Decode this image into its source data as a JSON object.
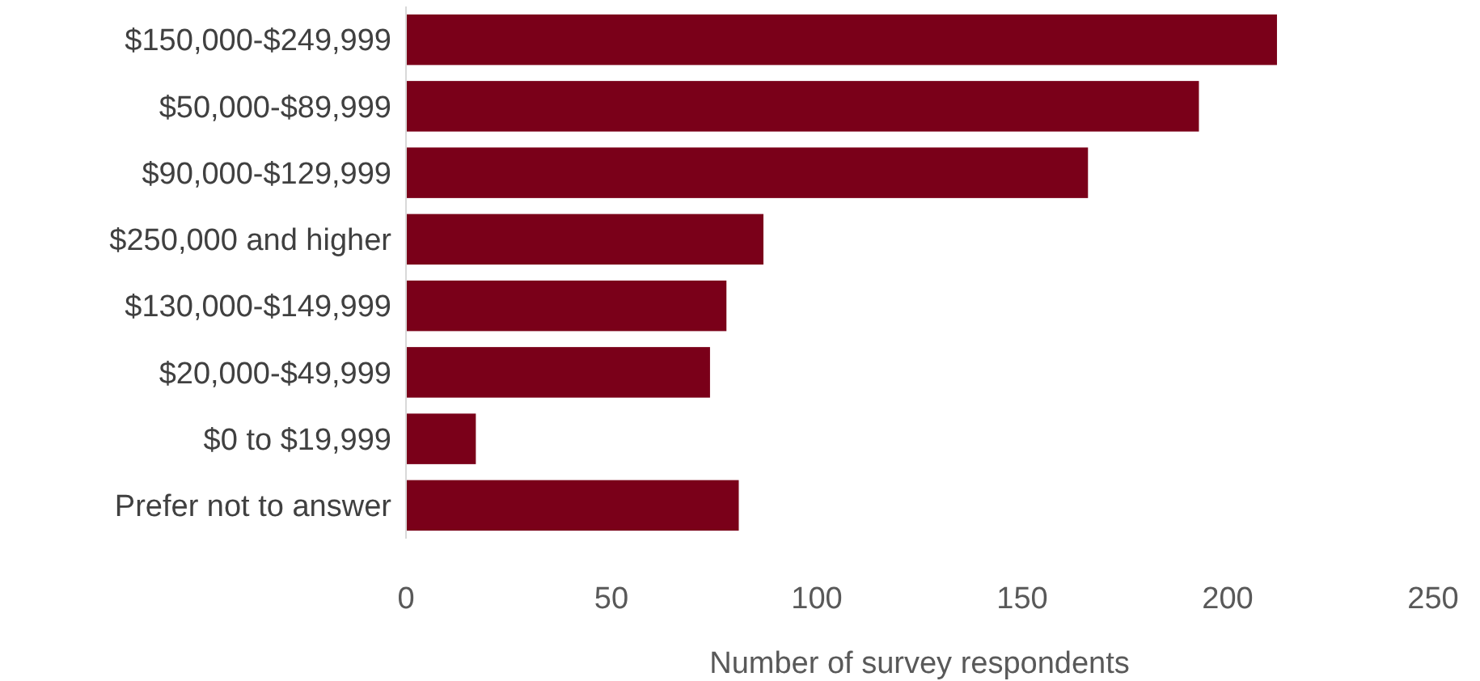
{
  "chart_data": {
    "type": "bar",
    "orientation": "horizontal",
    "xlabel": "Number of survey respondents",
    "categories": [
      "$150,000-$249,999",
      "$50,000-$89,999",
      "$90,000-$129,999",
      "$250,000 and higher",
      "$130,000-$149,999",
      "$20,000-$49,999",
      "$0 to $19,999",
      "Prefer not to answer"
    ],
    "values": [
      212,
      193,
      166,
      87,
      78,
      74,
      17,
      81
    ],
    "color": "#7a0019",
    "xlim": [
      0,
      250
    ],
    "xticks": [
      0,
      50,
      100,
      150,
      200,
      250
    ],
    "grid": false
  }
}
